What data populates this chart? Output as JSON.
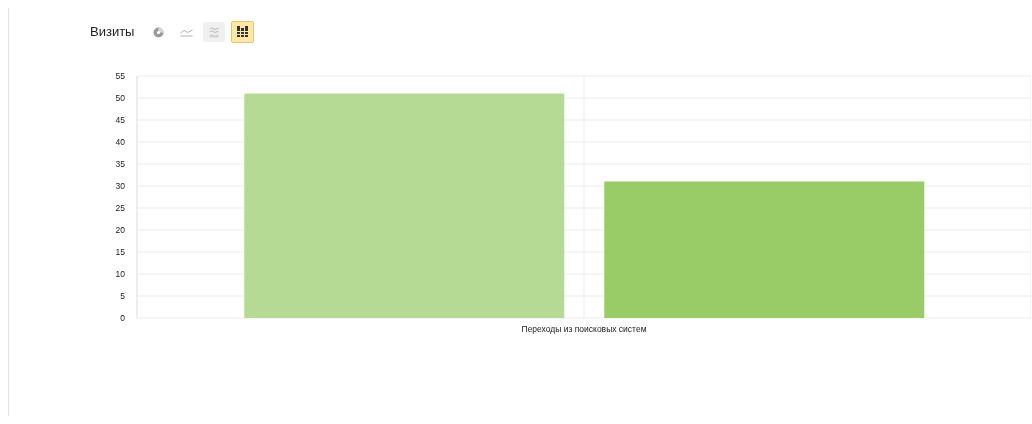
{
  "chart_data": {
    "type": "bar",
    "title": "Визиты",
    "categories": [
      "Переходы из поисковых систем"
    ],
    "series": [
      {
        "color": "#b5da93",
        "values": [
          51
        ]
      },
      {
        "color": "#99cc66",
        "values": [
          31
        ]
      }
    ],
    "ylim": [
      0,
      55
    ],
    "yticks": [
      0,
      5,
      10,
      15,
      20,
      25,
      30,
      35,
      40,
      45,
      50,
      55
    ],
    "grid": true
  }
}
